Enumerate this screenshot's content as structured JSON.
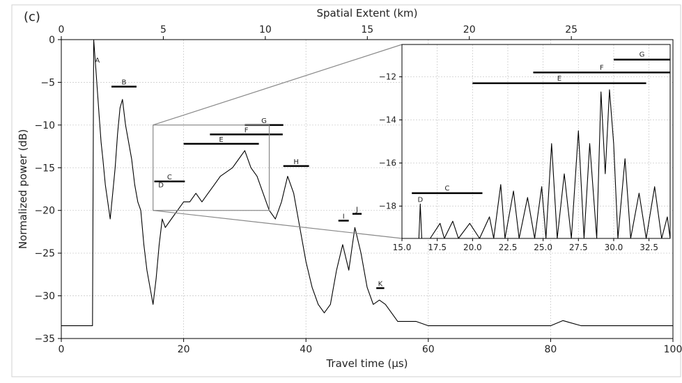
{
  "panel_label": "(c)",
  "chart_data": [
    {
      "type": "line",
      "role": "main",
      "xlabel": "Travel time (μs)",
      "ylabel": "Normalized power (dB)",
      "top_xlabel": "Spatial Extent (km)",
      "xlim": [
        0,
        100
      ],
      "ylim": [
        -35,
        0
      ],
      "x_ticks": [
        0,
        20,
        40,
        60,
        80,
        100
      ],
      "y_ticks": [
        0,
        -5,
        -10,
        -15,
        -20,
        -25,
        -30,
        -35
      ],
      "top_x_ticks": [
        0,
        5,
        10,
        15,
        20,
        25
      ],
      "top_xlim_km": [
        0,
        29.98
      ],
      "grid": true,
      "series": [
        {
          "color": "#000000",
          "points": [
            [
              0,
              -33.5
            ],
            [
              5,
              -33.5
            ],
            [
              5.1,
              -33.5
            ],
            [
              5.3,
              0
            ],
            [
              5.6,
              -3
            ],
            [
              5.9,
              -6
            ],
            [
              6.2,
              -9
            ],
            [
              6.5,
              -12
            ],
            [
              6.8,
              -14
            ],
            [
              7.2,
              -17
            ],
            [
              7.6,
              -19
            ],
            [
              8,
              -21
            ],
            [
              8.4,
              -18
            ],
            [
              8.8,
              -15
            ],
            [
              9.2,
              -11
            ],
            [
              9.6,
              -8
            ],
            [
              10,
              -7
            ],
            [
              10.5,
              -10
            ],
            [
              11,
              -12
            ],
            [
              11.5,
              -14
            ],
            [
              12,
              -17
            ],
            [
              12.5,
              -19
            ],
            [
              13,
              -20
            ],
            [
              13.5,
              -24
            ],
            [
              14,
              -27
            ],
            [
              14.5,
              -29
            ],
            [
              15,
              -31
            ],
            [
              15.5,
              -28
            ],
            [
              16,
              -24
            ],
            [
              16.5,
              -21
            ],
            [
              17,
              -22
            ],
            [
              18,
              -21
            ],
            [
              19,
              -20
            ],
            [
              20,
              -19
            ],
            [
              21,
              -19
            ],
            [
              22,
              -18
            ],
            [
              23,
              -19
            ],
            [
              24,
              -18
            ],
            [
              25,
              -17
            ],
            [
              26,
              -16
            ],
            [
              27,
              -15.5
            ],
            [
              28,
              -15
            ],
            [
              29,
              -14
            ],
            [
              30,
              -13
            ],
            [
              31,
              -15
            ],
            [
              32,
              -16
            ],
            [
              33,
              -18
            ],
            [
              34,
              -20
            ],
            [
              35,
              -21
            ],
            [
              36,
              -19
            ],
            [
              37,
              -16
            ],
            [
              38,
              -18
            ],
            [
              39,
              -22
            ],
            [
              40,
              -26
            ],
            [
              41,
              -29
            ],
            [
              42,
              -31
            ],
            [
              43,
              -32
            ],
            [
              44,
              -31
            ],
            [
              45,
              -27
            ],
            [
              46,
              -24
            ],
            [
              47,
              -27
            ],
            [
              48,
              -22
            ],
            [
              49,
              -25
            ],
            [
              50,
              -29
            ],
            [
              51,
              -31
            ],
            [
              52,
              -30.5
            ],
            [
              53,
              -31
            ],
            [
              55,
              -33
            ],
            [
              58,
              -33
            ],
            [
              60,
              -33.5
            ],
            [
              65,
              -33.5
            ],
            [
              70,
              -33.5
            ],
            [
              75,
              -33.5
            ],
            [
              80,
              -33.5
            ],
            [
              82,
              -32.9
            ],
            [
              83,
              -33.1
            ],
            [
              85,
              -33.5
            ],
            [
              90,
              -33.5
            ],
            [
              95,
              -33.5
            ],
            [
              100,
              -33.5
            ]
          ]
        }
      ],
      "segments": [
        {
          "label": "B",
          "x1": 8.2,
          "x2": 12.3,
          "y": -5.5
        },
        {
          "label": "C",
          "x1": 15.2,
          "x2": 20.2,
          "y": -16.6
        },
        {
          "label": "E",
          "x1": 20,
          "x2": 32.3,
          "y": -12.2
        },
        {
          "label": "F",
          "x1": 24.3,
          "x2": 36.2,
          "y": -11.1
        },
        {
          "label": "G",
          "x1": 30,
          "x2": 36.3,
          "y": -10
        },
        {
          "label": "H",
          "x1": 36.3,
          "x2": 40.5,
          "y": -14.8
        },
        {
          "label": "I",
          "x1": 45.3,
          "x2": 47,
          "y": -21.2
        },
        {
          "label": "J",
          "x1": 47.6,
          "x2": 49.1,
          "y": -20.4
        },
        {
          "label": "K",
          "x1": 51.5,
          "x2": 52.8,
          "y": -29.1
        }
      ],
      "point_labels": [
        {
          "label": "A",
          "x": 5.9,
          "y": -2.7
        },
        {
          "label": "D",
          "x": 16.3,
          "y": -17.3
        }
      ]
    },
    {
      "type": "line",
      "role": "inset",
      "xlim": [
        15,
        34
      ],
      "ylim": [
        -19.5,
        -10.5
      ],
      "x_ticks": [
        15.0,
        17.5,
        20.0,
        22.5,
        25.0,
        27.5,
        30.0,
        32.5
      ],
      "y_ticks": [
        -12,
        -14,
        -16,
        -18
      ],
      "grid": true,
      "zoom_region": {
        "x1": 15,
        "x2": 34,
        "y1": -20,
        "y2": -10
      },
      "series": [
        {
          "color": "#000000",
          "points": [
            [
              15,
              -19.5
            ],
            [
              16.2,
              -19.5
            ],
            [
              16.3,
              -17.9
            ],
            [
              16.4,
              -19.5
            ],
            [
              17,
              -19.5
            ],
            [
              17.7,
              -18.8
            ],
            [
              18,
              -19.5
            ],
            [
              18.6,
              -18.7
            ],
            [
              19,
              -19.5
            ],
            [
              19.8,
              -18.8
            ],
            [
              20.5,
              -19.5
            ],
            [
              21.2,
              -18.5
            ],
            [
              21.5,
              -19.5
            ],
            [
              22,
              -17
            ],
            [
              22.3,
              -19.5
            ],
            [
              22.9,
              -17.3
            ],
            [
              23.3,
              -19.5
            ],
            [
              23.9,
              -17.6
            ],
            [
              24.4,
              -19.5
            ],
            [
              24.9,
              -17.1
            ],
            [
              25.2,
              -19.5
            ],
            [
              25.6,
              -15.1
            ],
            [
              26,
              -19.5
            ],
            [
              26.5,
              -16.5
            ],
            [
              27,
              -19.5
            ],
            [
              27.5,
              -14.5
            ],
            [
              27.9,
              -19.5
            ],
            [
              28.3,
              -15.1
            ],
            [
              28.8,
              -19.5
            ],
            [
              29.1,
              -12.7
            ],
            [
              29.4,
              -16.5
            ],
            [
              29.7,
              -12.6
            ],
            [
              30,
              -15.1
            ],
            [
              30.3,
              -19.5
            ],
            [
              30.8,
              -15.8
            ],
            [
              31.2,
              -19.5
            ],
            [
              31.8,
              -17.4
            ],
            [
              32.3,
              -19.5
            ],
            [
              32.9,
              -17.1
            ],
            [
              33.4,
              -19.5
            ],
            [
              33.8,
              -18.5
            ],
            [
              34,
              -19.5
            ]
          ]
        }
      ],
      "segments": [
        {
          "label": "C",
          "x1": 15.7,
          "x2": 20.7,
          "y": -17.4
        },
        {
          "label": "E",
          "x1": 20,
          "x2": 32.3,
          "y": -12.3
        },
        {
          "label": "F",
          "x1": 24.3,
          "x2": 34,
          "y": -11.8
        },
        {
          "label": "G",
          "x1": 30,
          "x2": 34,
          "y": -11.2
        }
      ],
      "point_labels": [
        {
          "label": "D",
          "x": 16.3,
          "y": -17.8
        }
      ]
    }
  ]
}
